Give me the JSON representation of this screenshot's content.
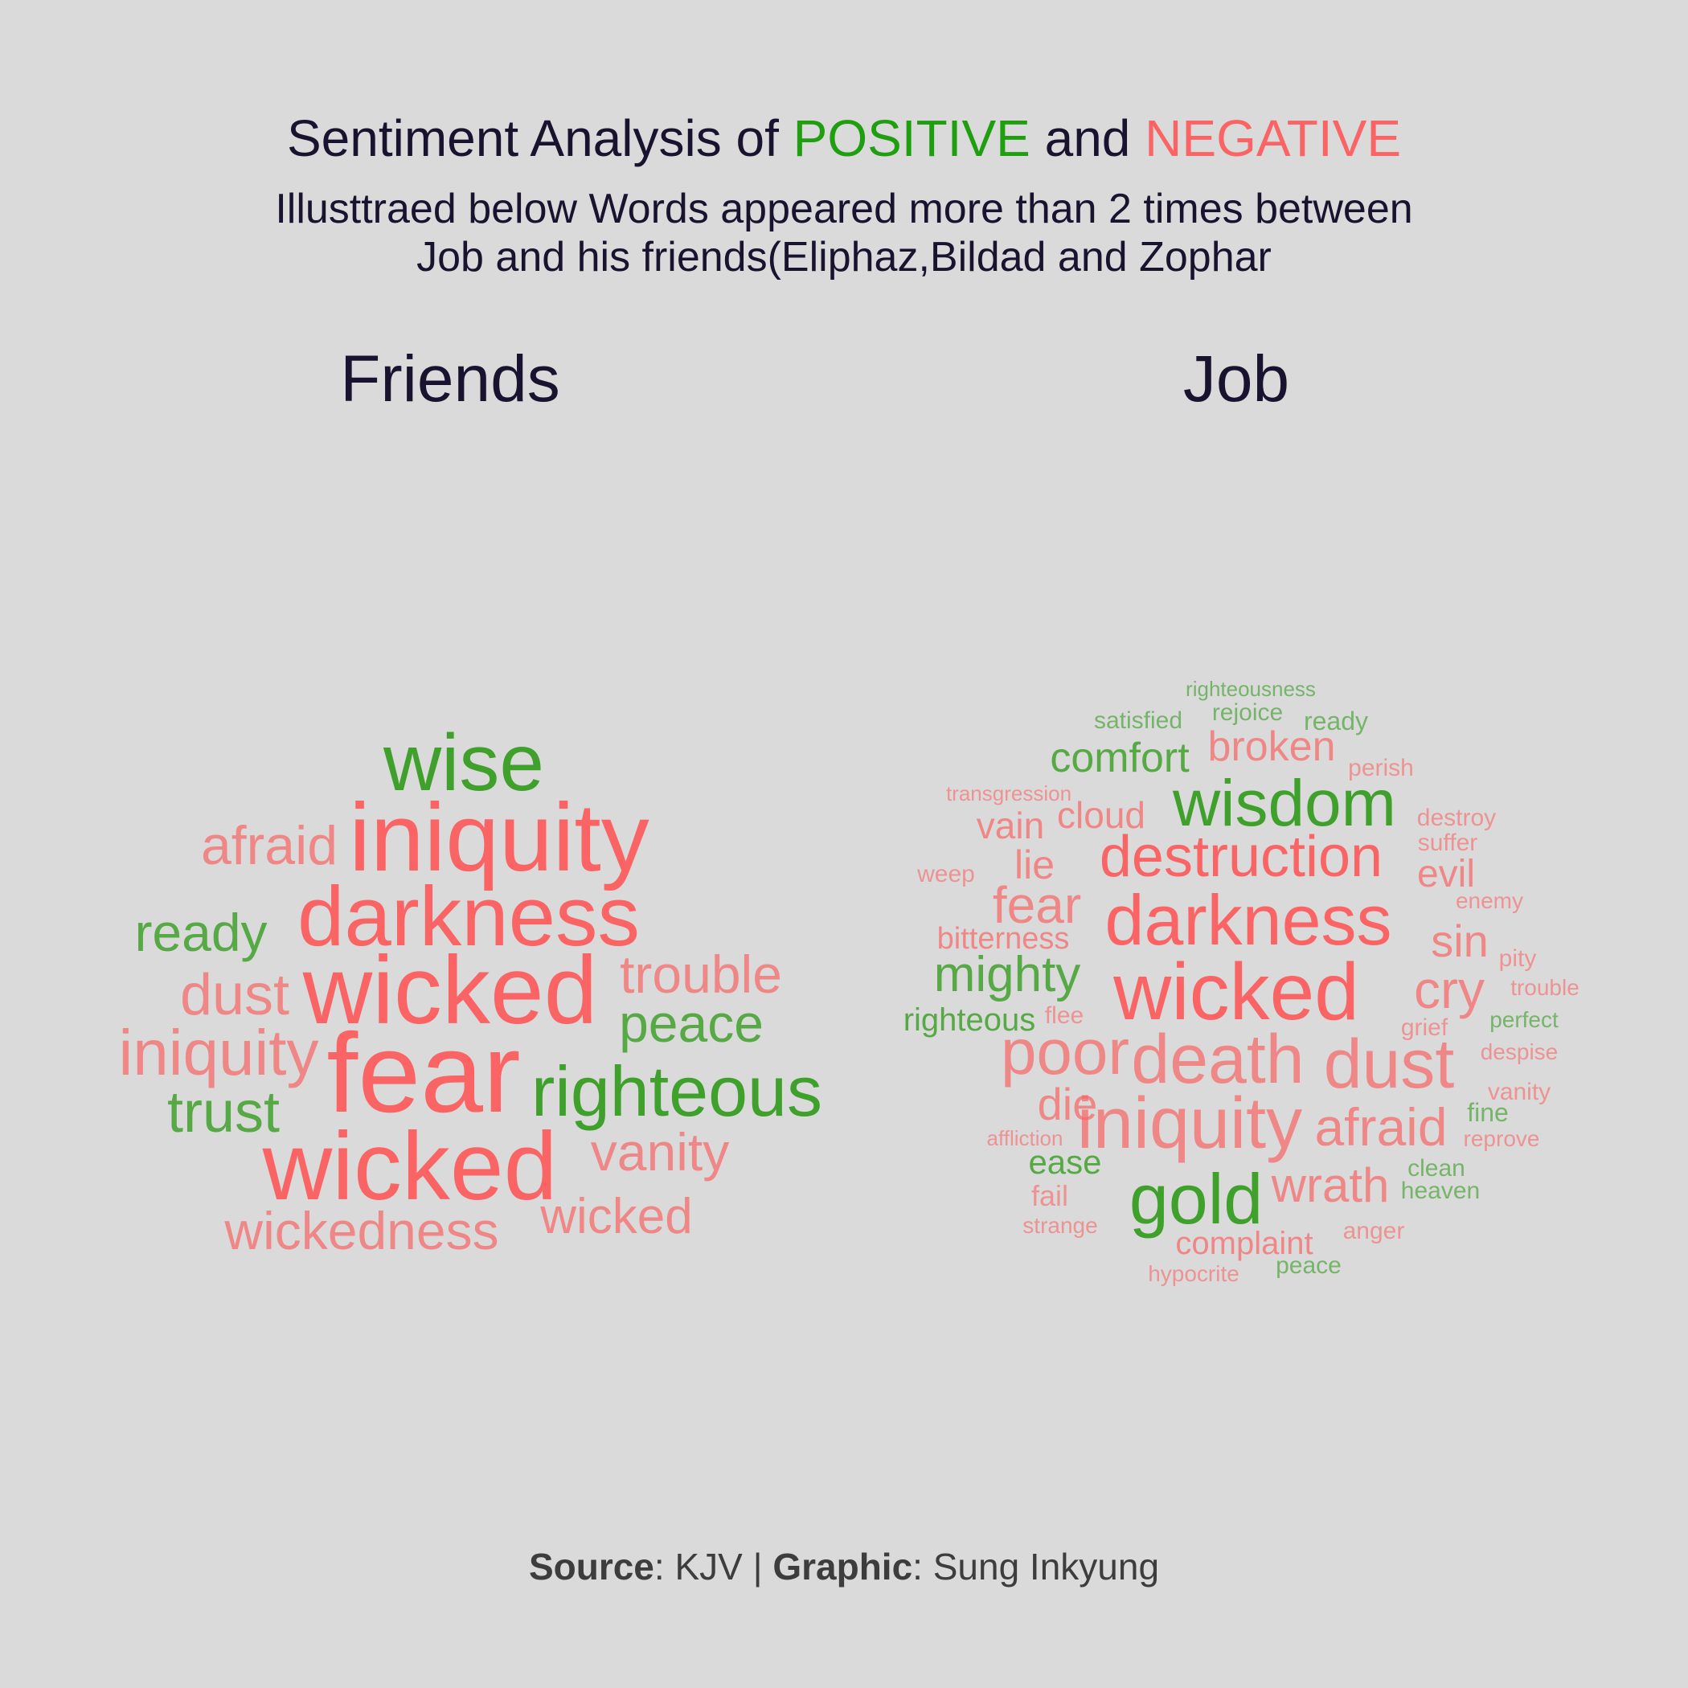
{
  "colors": {
    "background": "#dadada",
    "text": "#1a1330",
    "positive_title": "#1f9e10",
    "negative_title": "#fa6464"
  },
  "header": {
    "title_part1": "Sentiment Analysis of ",
    "title_positive": "POSITIVE",
    "title_mid": " and ",
    "title_negative": "NEGATIVE",
    "subtitle_line1": "Illusttraed below Words appeared more than 2 times between",
    "subtitle_line2": "Job and his friends(Eliphaz,Bildad and Zophar"
  },
  "caption": {
    "source_label": "Source",
    "source_value": ": KJV | ",
    "graphic_label": "Graphic",
    "graphic_value": ": Sung Inkyung"
  },
  "chart_data": [
    {
      "type": "wordcloud",
      "title": "Friends",
      "legend": {
        "positive": "#3fa02c",
        "negative": "#fa6464"
      },
      "words": [
        {
          "word": "wise",
          "sentiment": "positive",
          "weight": 6
        },
        {
          "word": "iniquity",
          "sentiment": "negative",
          "weight": 8
        },
        {
          "word": "afraid",
          "sentiment": "negative",
          "weight": 3
        },
        {
          "word": "darkness",
          "sentiment": "negative",
          "weight": 7
        },
        {
          "word": "ready",
          "sentiment": "positive",
          "weight": 3
        },
        {
          "word": "wicked",
          "sentiment": "negative",
          "weight": 8
        },
        {
          "word": "trouble",
          "sentiment": "negative",
          "weight": 3
        },
        {
          "word": "dust",
          "sentiment": "negative",
          "weight": 3
        },
        {
          "word": "peace",
          "sentiment": "positive",
          "weight": 3
        },
        {
          "word": "iniquity",
          "sentiment": "negative",
          "weight": 4
        },
        {
          "word": "fear",
          "sentiment": "negative",
          "weight": 10
        },
        {
          "word": "righteous",
          "sentiment": "positive",
          "weight": 5
        },
        {
          "word": "trust",
          "sentiment": "positive",
          "weight": 3
        },
        {
          "word": "vanity",
          "sentiment": "negative",
          "weight": 3
        },
        {
          "word": "wicked",
          "sentiment": "negative",
          "weight": 8
        },
        {
          "word": "wickedness",
          "sentiment": "negative",
          "weight": 3
        },
        {
          "word": "wicked",
          "sentiment": "negative",
          "weight": 3
        }
      ]
    },
    {
      "type": "wordcloud",
      "title": "Job",
      "legend": {
        "positive": "#3fa02c",
        "negative": "#fa6464"
      },
      "words": [
        {
          "word": "righteousness",
          "sentiment": "positive",
          "weight": 1
        },
        {
          "word": "satisfied",
          "sentiment": "positive",
          "weight": 1
        },
        {
          "word": "rejoice",
          "sentiment": "positive",
          "weight": 1
        },
        {
          "word": "ready",
          "sentiment": "positive",
          "weight": 1
        },
        {
          "word": "comfort",
          "sentiment": "positive",
          "weight": 3
        },
        {
          "word": "broken",
          "sentiment": "negative",
          "weight": 3
        },
        {
          "word": "perish",
          "sentiment": "negative",
          "weight": 1
        },
        {
          "word": "transgression",
          "sentiment": "negative",
          "weight": 1
        },
        {
          "word": "wisdom",
          "sentiment": "positive",
          "weight": 6
        },
        {
          "word": "cloud",
          "sentiment": "negative",
          "weight": 2
        },
        {
          "word": "vain",
          "sentiment": "negative",
          "weight": 2
        },
        {
          "word": "destroy",
          "sentiment": "negative",
          "weight": 1
        },
        {
          "word": "suffer",
          "sentiment": "negative",
          "weight": 1
        },
        {
          "word": "weep",
          "sentiment": "negative",
          "weight": 1
        },
        {
          "word": "lie",
          "sentiment": "negative",
          "weight": 2
        },
        {
          "word": "destruction",
          "sentiment": "negative",
          "weight": 6
        },
        {
          "word": "evil",
          "sentiment": "negative",
          "weight": 2
        },
        {
          "word": "enemy",
          "sentiment": "negative",
          "weight": 1
        },
        {
          "word": "fear",
          "sentiment": "negative",
          "weight": 3
        },
        {
          "word": "darkness",
          "sentiment": "negative",
          "weight": 7
        },
        {
          "word": "bitterness",
          "sentiment": "negative",
          "weight": 1
        },
        {
          "word": "sin",
          "sentiment": "negative",
          "weight": 3
        },
        {
          "word": "pity",
          "sentiment": "negative",
          "weight": 1
        },
        {
          "word": "mighty",
          "sentiment": "positive",
          "weight": 3
        },
        {
          "word": "wicked",
          "sentiment": "negative",
          "weight": 9
        },
        {
          "word": "cry",
          "sentiment": "negative",
          "weight": 3
        },
        {
          "word": "trouble",
          "sentiment": "negative",
          "weight": 1
        },
        {
          "word": "righteous",
          "sentiment": "positive",
          "weight": 2
        },
        {
          "word": "flee",
          "sentiment": "negative",
          "weight": 1
        },
        {
          "word": "perfect",
          "sentiment": "positive",
          "weight": 1
        },
        {
          "word": "grief",
          "sentiment": "negative",
          "weight": 1
        },
        {
          "word": "poor",
          "sentiment": "negative",
          "weight": 4
        },
        {
          "word": "death",
          "sentiment": "negative",
          "weight": 6
        },
        {
          "word": "dust",
          "sentiment": "negative",
          "weight": 6
        },
        {
          "word": "despise",
          "sentiment": "negative",
          "weight": 1
        },
        {
          "word": "die",
          "sentiment": "negative",
          "weight": 3
        },
        {
          "word": "vanity",
          "sentiment": "negative",
          "weight": 1
        },
        {
          "word": "iniquity",
          "sentiment": "negative",
          "weight": 6
        },
        {
          "word": "afraid",
          "sentiment": "negative",
          "weight": 4
        },
        {
          "word": "fine",
          "sentiment": "positive",
          "weight": 1
        },
        {
          "word": "affliction",
          "sentiment": "negative",
          "weight": 1
        },
        {
          "word": "reprove",
          "sentiment": "negative",
          "weight": 1
        },
        {
          "word": "ease",
          "sentiment": "positive",
          "weight": 2
        },
        {
          "word": "clean",
          "sentiment": "positive",
          "weight": 1
        },
        {
          "word": "gold",
          "sentiment": "positive",
          "weight": 6
        },
        {
          "word": "wrath",
          "sentiment": "negative",
          "weight": 4
        },
        {
          "word": "fail",
          "sentiment": "negative",
          "weight": 1
        },
        {
          "word": "heaven",
          "sentiment": "positive",
          "weight": 1
        },
        {
          "word": "strange",
          "sentiment": "negative",
          "weight": 1
        },
        {
          "word": "anger",
          "sentiment": "negative",
          "weight": 1
        },
        {
          "word": "complaint",
          "sentiment": "negative",
          "weight": 2
        },
        {
          "word": "peace",
          "sentiment": "positive",
          "weight": 1
        },
        {
          "word": "hypocrite",
          "sentiment": "negative",
          "weight": 1
        }
      ]
    }
  ]
}
